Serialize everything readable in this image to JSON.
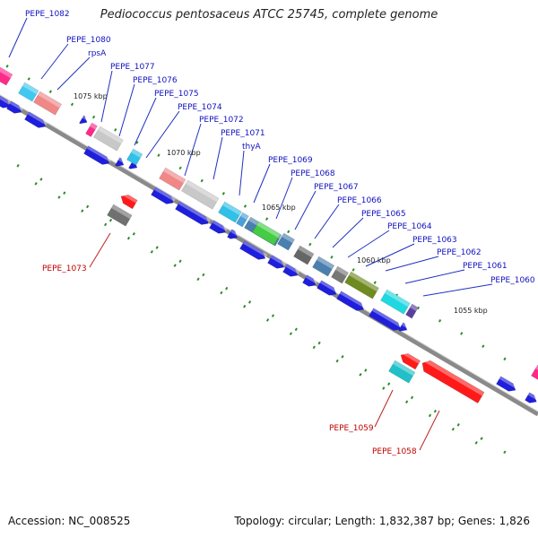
{
  "title": "Pediococcus pentosaceus ATCC 25745, complete genome",
  "footer": {
    "accession": "Accession: NC_008525",
    "summary": "Topology: circular; Length: 1,832,387 bp; Genes: 1,826"
  },
  "scale_labels": [
    "1075 kbp",
    "1070 kbp",
    "1065 kbp",
    "1060 kbp",
    "1055 kbp"
  ],
  "top_labels": [
    "PEPE_1082",
    "PEPE_1080",
    "rpsA",
    "PEPE_1077",
    "PEPE_1076",
    "PEPE_1075",
    "PEPE_1074",
    "PEPE_1072",
    "PEPE_1071",
    "thyA",
    "PEPE_1069",
    "PEPE_1068",
    "PEPE_1067",
    "PEPE_1066",
    "PEPE_1065",
    "PEPE_1064",
    "PEPE_1063",
    "PEPE_1062",
    "PEPE_1061",
    "PEPE_1060"
  ],
  "bottom_labels": [
    "PEPE_1073",
    "PEPE_1059",
    "PEPE_1058"
  ],
  "colors": {
    "forward_label": "#1010c0",
    "reverse_label": "#c00000",
    "backbone": "#888888",
    "cds_forward": "#1e1edc",
    "cds_reverse": "#ff1a1a",
    "tick": "#2e8b2e"
  }
}
